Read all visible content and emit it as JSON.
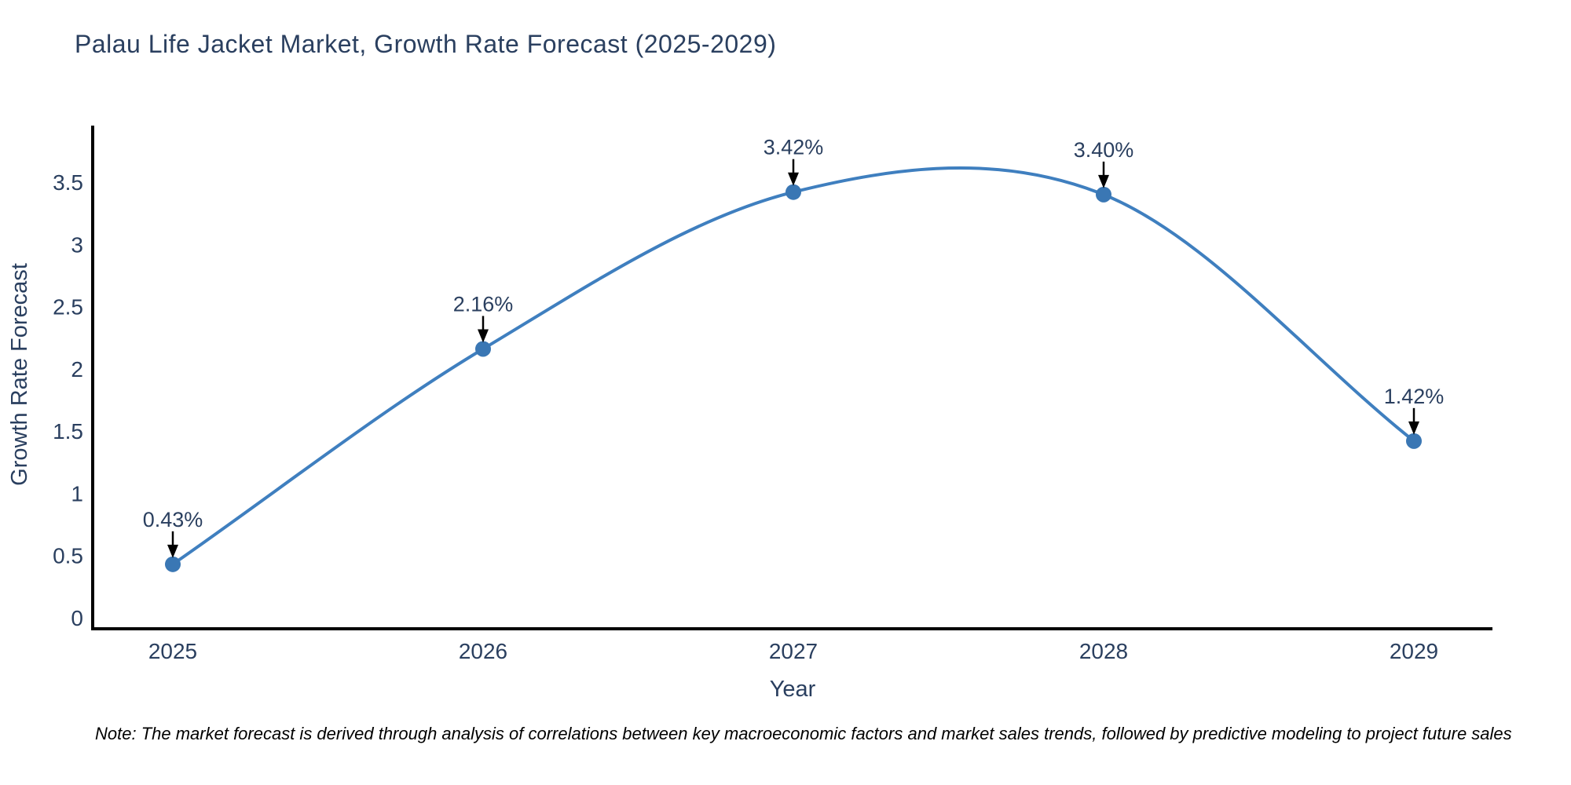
{
  "header": {
    "title": "Palau Life Jacket Market, Growth Rate Forecast (2025-2029)"
  },
  "footnote": {
    "text": "Note: The market forecast is derived through analysis of correlations between key macroeconomic factors and market sales trends, followed by predictive modeling to project future sales"
  },
  "chart_data": {
    "type": "line",
    "title": "Palau Life Jacket Market, Growth Rate Forecast (2025-2029)",
    "categories": [
      "2025",
      "2026",
      "2027",
      "2028",
      "2029"
    ],
    "series": [
      {
        "name": "Growth Rate Forecast",
        "values": [
          0.43,
          2.16,
          3.42,
          3.4,
          1.42
        ]
      }
    ],
    "point_labels": [
      "0.43%",
      "2.16%",
      "3.42%",
      "3.40%",
      "1.42%"
    ],
    "xlabel": "Year",
    "ylabel": "Growth Rate Forecast",
    "yticks": [
      "0",
      "0.5",
      "1",
      "1.5",
      "2",
      "2.5",
      "3",
      "3.5"
    ],
    "ytick_values": [
      0,
      0.5,
      1,
      1.5,
      2,
      2.5,
      3,
      3.5
    ],
    "ylim": [
      -0.09,
      3.95
    ],
    "xlim": [
      "2024.74",
      "2029.26"
    ],
    "grid": false,
    "legend": "none",
    "line_shape": "spline",
    "marker": "circle",
    "annotation_arrows": "down",
    "colors": {
      "line": "#3f7fbf",
      "marker": "#3a77b4",
      "axis": "#000000",
      "text": "#2a3f5f",
      "annotation_text": "#2a3f5f",
      "arrow": "#000000",
      "background": "#ffffff"
    }
  }
}
